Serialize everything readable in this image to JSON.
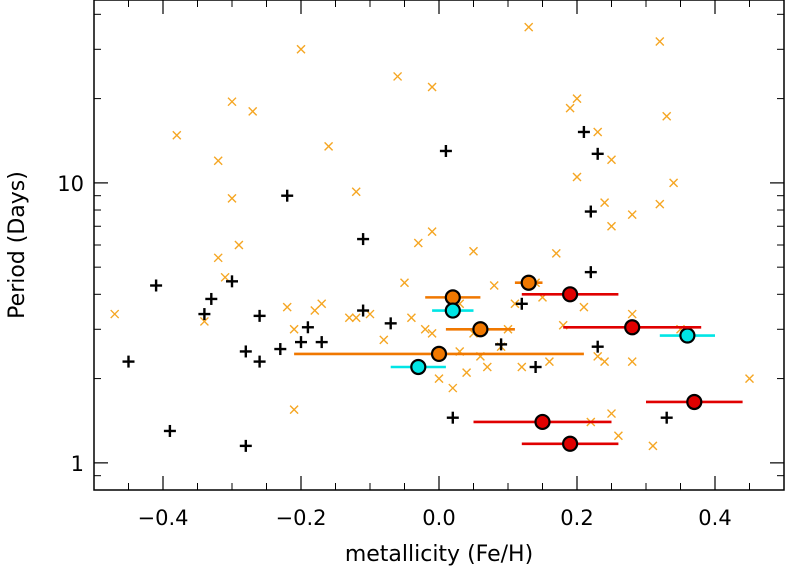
{
  "chart_data": {
    "type": "scatter",
    "xlabel": "metallicity (Fe/H)",
    "ylabel": "Period (Days)",
    "xlim": [
      -0.5,
      0.5
    ],
    "ylim": [
      0.8,
      45
    ],
    "yscale": "log",
    "x_ticks": [
      -0.4,
      -0.2,
      0.0,
      0.2,
      0.4
    ],
    "x_tick_labels": [
      "−0.4",
      "−0.2",
      "0.0",
      "0.2",
      "0.4"
    ],
    "y_ticks": [
      1,
      10
    ],
    "y_tick_labels": [
      "1",
      "10"
    ],
    "grid": false,
    "legend": "none",
    "colors": {
      "orange": "#f5a623",
      "black": "#000000",
      "cyan": "#00e5e5",
      "red": "#e00000",
      "darkorange": "#f07800"
    },
    "series": [
      {
        "marker": "x",
        "color": "#f5a623",
        "points": [
          [
            -0.47,
            3.4
          ],
          [
            -0.38,
            14.8
          ],
          [
            -0.32,
            12.0
          ],
          [
            -0.3,
            19.5
          ],
          [
            -0.29,
            6.0
          ],
          [
            -0.31,
            4.6
          ],
          [
            -0.3,
            8.8
          ],
          [
            -0.32,
            5.4
          ],
          [
            -0.34,
            3.2
          ],
          [
            -0.27,
            18.0
          ],
          [
            -0.22,
            3.6
          ],
          [
            -0.21,
            3.0
          ],
          [
            -0.21,
            1.55
          ],
          [
            -0.2,
            30.0
          ],
          [
            -0.18,
            3.5
          ],
          [
            -0.17,
            3.7
          ],
          [
            -0.16,
            13.5
          ],
          [
            -0.13,
            3.3
          ],
          [
            -0.12,
            3.3
          ],
          [
            -0.12,
            9.3
          ],
          [
            -0.1,
            3.4
          ],
          [
            -0.08,
            2.75
          ],
          [
            -0.05,
            4.4
          ],
          [
            -0.06,
            24.0
          ],
          [
            -0.04,
            3.3
          ],
          [
            -0.02,
            3.0
          ],
          [
            -0.01,
            2.9
          ],
          [
            -0.01,
            22.0
          ],
          [
            -0.01,
            6.7
          ],
          [
            -0.03,
            6.1
          ],
          [
            0.0,
            2.0
          ],
          [
            0.02,
            1.85
          ],
          [
            0.03,
            2.5
          ],
          [
            0.03,
            3.7
          ],
          [
            0.04,
            2.1
          ],
          [
            0.05,
            2.9
          ],
          [
            0.05,
            5.7
          ],
          [
            0.06,
            2.4
          ],
          [
            0.07,
            2.2
          ],
          [
            0.08,
            4.3
          ],
          [
            0.09,
            2.6
          ],
          [
            0.1,
            3.0
          ],
          [
            0.11,
            3.7
          ],
          [
            0.12,
            2.2
          ],
          [
            0.13,
            36.0
          ],
          [
            0.14,
            4.4
          ],
          [
            0.15,
            3.9
          ],
          [
            0.16,
            2.3
          ],
          [
            0.17,
            5.6
          ],
          [
            0.18,
            3.1
          ],
          [
            0.19,
            18.5
          ],
          [
            0.2,
            20.0
          ],
          [
            0.2,
            10.5
          ],
          [
            0.21,
            3.6
          ],
          [
            0.22,
            1.4
          ],
          [
            0.23,
            15.2
          ],
          [
            0.24,
            2.3
          ],
          [
            0.23,
            2.4
          ],
          [
            0.24,
            8.5
          ],
          [
            0.25,
            12.1
          ],
          [
            0.25,
            7.0
          ],
          [
            0.25,
            1.5
          ],
          [
            0.26,
            1.25
          ],
          [
            0.28,
            7.7
          ],
          [
            0.28,
            2.3
          ],
          [
            0.28,
            3.4
          ],
          [
            0.31,
            1.15
          ],
          [
            0.32,
            8.4
          ],
          [
            0.32,
            32.0
          ],
          [
            0.33,
            17.3
          ],
          [
            0.34,
            10.0
          ],
          [
            0.35,
            3.0
          ],
          [
            0.45,
            2.0
          ]
        ]
      },
      {
        "marker": "+",
        "color": "#000000",
        "points": [
          [
            -0.45,
            2.3
          ],
          [
            -0.41,
            4.3
          ],
          [
            -0.39,
            1.3
          ],
          [
            -0.34,
            3.4
          ],
          [
            -0.33,
            3.85
          ],
          [
            -0.3,
            4.45
          ],
          [
            -0.28,
            2.5
          ],
          [
            -0.28,
            1.15
          ],
          [
            -0.26,
            3.35
          ],
          [
            -0.26,
            2.3
          ],
          [
            -0.22,
            9.0
          ],
          [
            -0.23,
            2.55
          ],
          [
            -0.2,
            2.7
          ],
          [
            -0.19,
            3.05
          ],
          [
            -0.17,
            2.7
          ],
          [
            -0.11,
            6.3
          ],
          [
            -0.11,
            3.5
          ],
          [
            -0.07,
            3.15
          ],
          [
            0.01,
            13.0
          ],
          [
            0.02,
            1.45
          ],
          [
            0.09,
            2.65
          ],
          [
            0.12,
            3.7
          ],
          [
            0.14,
            2.2
          ],
          [
            0.21,
            15.2
          ],
          [
            0.22,
            7.9
          ],
          [
            0.22,
            4.8
          ],
          [
            0.23,
            12.7
          ],
          [
            0.23,
            2.6
          ],
          [
            0.33,
            1.45
          ]
        ]
      },
      {
        "marker": "circle-errorbar",
        "color": "#f07800",
        "points": [
          {
            "x": 0.02,
            "y": 3.9,
            "xerr": 0.04
          },
          {
            "x": 0.06,
            "y": 3.0,
            "xerr": 0.05
          },
          {
            "x": 0.13,
            "y": 4.4,
            "xerr": 0.02
          },
          {
            "x": 0.0,
            "y": 2.45,
            "xerr": 0.21
          }
        ]
      },
      {
        "marker": "circle-errorbar",
        "color": "#00e5e5",
        "points": [
          {
            "x": 0.02,
            "y": 3.5,
            "xerr": 0.03
          },
          {
            "x": -0.03,
            "y": 2.2,
            "xerr": 0.04
          },
          {
            "x": 0.36,
            "y": 2.85,
            "xerr": 0.04
          }
        ]
      },
      {
        "marker": "circle-errorbar",
        "color": "#e00000",
        "points": [
          {
            "x": 0.19,
            "y": 4.0,
            "xerr": 0.07
          },
          {
            "x": 0.28,
            "y": 3.05,
            "xerr": 0.1
          },
          {
            "x": 0.37,
            "y": 1.65,
            "xerr": 0.07
          },
          {
            "x": 0.15,
            "y": 1.4,
            "xerr": 0.1
          },
          {
            "x": 0.19,
            "y": 1.17,
            "xerr": 0.07
          }
        ]
      }
    ]
  }
}
